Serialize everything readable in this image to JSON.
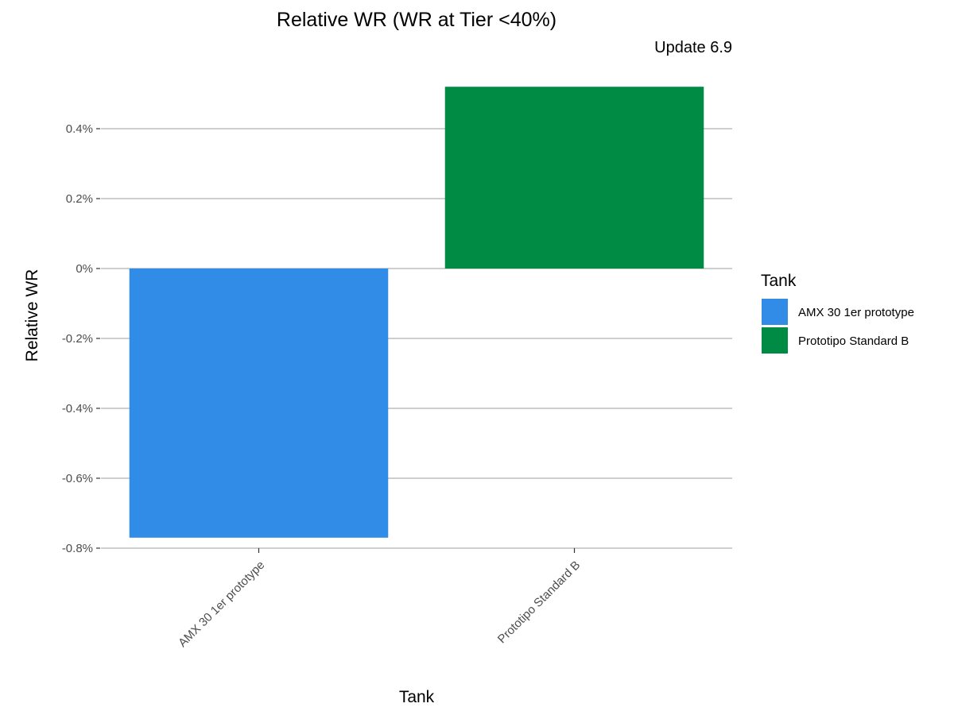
{
  "chart_data": {
    "type": "bar",
    "title": "Relative WR (WR at Tier <40%)",
    "subtitle": "Update 6.9",
    "xlabel": "Tank",
    "ylabel": "Relative WR",
    "categories": [
      "AMX 30 1er prototype",
      "Prototipo Standard B"
    ],
    "values": [
      -0.77,
      0.52
    ],
    "colors": [
      "#318CE7",
      "#008B45"
    ],
    "ylim": [
      -0.8,
      0.52
    ],
    "yticks": [
      -0.8,
      -0.6,
      -0.4,
      -0.2,
      0,
      0.2,
      0.4
    ],
    "ytick_labels": [
      "-0.8%",
      "-0.6%",
      "-0.4%",
      "-0.2%",
      "0%",
      "0.2%",
      "0.4%"
    ],
    "y_unit": "%",
    "grid": true,
    "legend": {
      "title": "Tank",
      "position": "right",
      "entries": [
        "AMX 30 1er prototype",
        "Prototipo Standard B"
      ]
    }
  }
}
